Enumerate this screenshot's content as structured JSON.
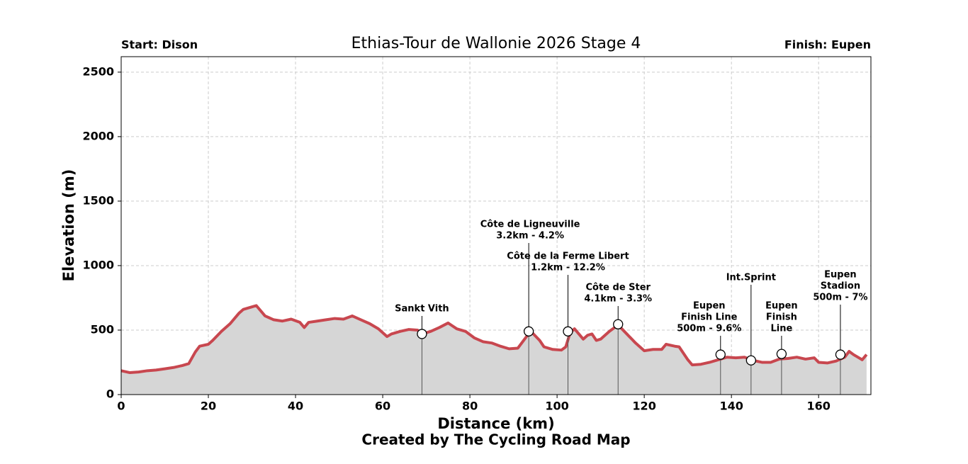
{
  "chart_data": {
    "type": "area",
    "title": "Ethias-Tour de Wallonie 2026 Stage 4",
    "start_label": "Start: Dison",
    "finish_label": "Finish: Eupen",
    "x_label": "Distance (km)",
    "y_label": "Elevation (m)",
    "footer": "Created by The Cycling Road Map",
    "xlim": [
      0,
      172
    ],
    "ylim": [
      0,
      2620
    ],
    "xticks": [
      0,
      20,
      40,
      60,
      80,
      100,
      120,
      140,
      160
    ],
    "yticks": [
      0,
      500,
      1000,
      1500,
      2000,
      2500
    ],
    "grid": true,
    "series": [
      {
        "color": "#c8474f",
        "fill": "#d6d6d6",
        "x": [
          0,
          2,
          4,
          6,
          8,
          10,
          12,
          14,
          15.5,
          17,
          18,
          20,
          21,
          23,
          25,
          27,
          28,
          30,
          31,
          33,
          35,
          37,
          39,
          41,
          42,
          43,
          45,
          47,
          49,
          51,
          53,
          55,
          57,
          59,
          61,
          62,
          64,
          66,
          68,
          69,
          71,
          73,
          75,
          77,
          79,
          81,
          83,
          85,
          87,
          89,
          91,
          93,
          94,
          96,
          97,
          99,
          101,
          102,
          103,
          104,
          106,
          107,
          108,
          109,
          110,
          112,
          114,
          116,
          118,
          120,
          122,
          124,
          125,
          127,
          128,
          130,
          131,
          133,
          135,
          137,
          139,
          141,
          143,
          145,
          147,
          149,
          151,
          153,
          155,
          157,
          159,
          160,
          162,
          164,
          166,
          167,
          168,
          169,
          170,
          171
        ],
        "values": [
          185,
          170,
          175,
          185,
          190,
          200,
          210,
          225,
          240,
          330,
          375,
          390,
          420,
          490,
          550,
          630,
          660,
          680,
          690,
          610,
          580,
          570,
          585,
          560,
          520,
          560,
          570,
          580,
          590,
          585,
          610,
          580,
          550,
          510,
          450,
          470,
          490,
          505,
          500,
          470,
          490,
          520,
          555,
          510,
          490,
          440,
          410,
          400,
          375,
          355,
          360,
          450,
          490,
          420,
          370,
          350,
          345,
          370,
          480,
          510,
          430,
          460,
          470,
          420,
          430,
          490,
          540,
          470,
          400,
          340,
          350,
          350,
          390,
          375,
          370,
          270,
          230,
          235,
          250,
          270,
          290,
          285,
          290,
          265,
          250,
          250,
          275,
          280,
          290,
          275,
          285,
          250,
          245,
          260,
          290,
          335,
          310,
          290,
          270,
          310
        ]
      }
    ],
    "annotations": [
      {
        "x": 69,
        "y": 470,
        "lines": [
          "Sankt Vith"
        ]
      },
      {
        "x": 93.5,
        "y": 490,
        "lines": [
          "Côte de Ligneuville",
          "3.2km - 4.2%"
        ]
      },
      {
        "x": 102.5,
        "y": 490,
        "lines": [
          "Côte de la Ferme Libert",
          "1.2km - 12.2%"
        ]
      },
      {
        "x": 114,
        "y": 545,
        "lines": [
          "Côte de Ster",
          "4.1km - 3.3%"
        ]
      },
      {
        "x": 137.5,
        "y": 310,
        "lines": [
          "Eupen",
          "Finish Line",
          "500m - 9.6%"
        ]
      },
      {
        "x": 144.5,
        "y": 265,
        "lines": [
          "Int.Sprint"
        ]
      },
      {
        "x": 151.5,
        "y": 315,
        "lines": [
          "Eupen",
          "Finish",
          "Line"
        ]
      },
      {
        "x": 165,
        "y": 310,
        "lines": [
          "Eupen",
          "Stadion",
          "500m - 7%"
        ]
      }
    ]
  }
}
